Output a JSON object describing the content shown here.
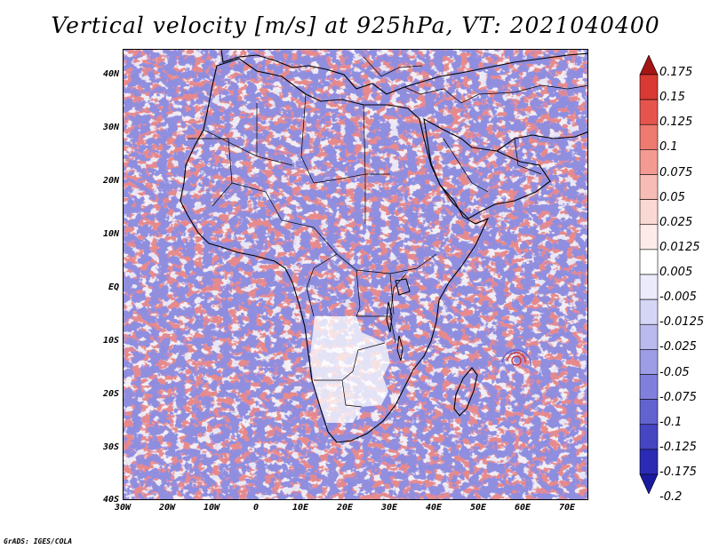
{
  "title": "Vertical velocity [m/s] at 925hPa, VT: 2021040400",
  "footer": "GrADS: IGES/COLA",
  "map": {
    "region": "Africa",
    "projection": "latlon",
    "lon_range": [
      -30,
      75
    ],
    "lat_range": [
      -40,
      45
    ],
    "lat_ticks": [
      "40N",
      "30N",
      "20N",
      "10N",
      "EQ",
      "10S",
      "20S",
      "30S",
      "40S"
    ],
    "lon_ticks": [
      "30W",
      "20W",
      "10W",
      "0",
      "10E",
      "20E",
      "30E",
      "40E",
      "50E",
      "60E",
      "70E"
    ]
  },
  "colorbar": {
    "labels": [
      "0.175",
      "0.15",
      "0.125",
      "0.1",
      "0.075",
      "0.05",
      "0.025",
      "0.0125",
      "0.005",
      "-0.005",
      "-0.0125",
      "-0.025",
      "-0.05",
      "-0.075",
      "-0.1",
      "-0.125",
      "-0.175",
      "-0.2"
    ],
    "colors": [
      "#c41a1a",
      "#d93a34",
      "#e6554d",
      "#ee7a70",
      "#f39b92",
      "#f7bcb6",
      "#fad8d4",
      "#fcebe9",
      "#ffffff",
      "#ebebfb",
      "#d5d5f5",
      "#babaee",
      "#9d9de5",
      "#8080dc",
      "#6363d0",
      "#4646c3",
      "#2a2ab4",
      "#2a2ab4"
    ],
    "top_arrow_color": "#a51515",
    "bottom_arrow_color": "#1a1aa0"
  }
}
